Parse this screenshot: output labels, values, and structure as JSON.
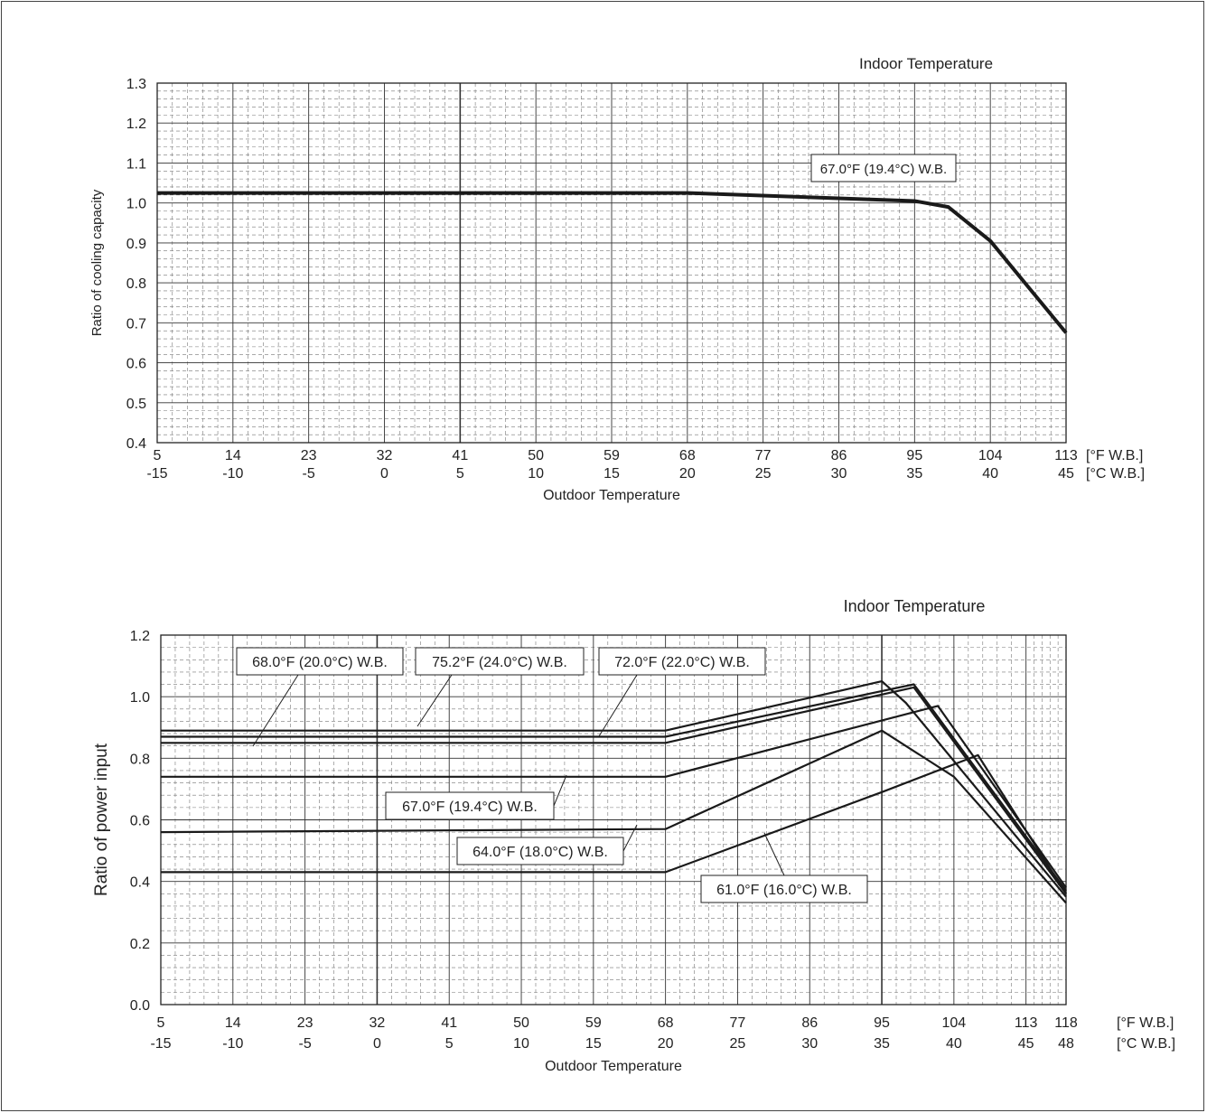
{
  "chart_data": [
    {
      "type": "line",
      "title": "Indoor Temperature",
      "ylabel": "Ratio of cooling capacity",
      "xlabel": "Outdoor Temperature",
      "ylim": [
        0.4,
        1.3
      ],
      "yticks": [
        "0.4",
        "0.5",
        "0.6",
        "0.7",
        "0.8",
        "0.9",
        "1.0",
        "1.1",
        "1.2",
        "1.3"
      ],
      "xlim": [
        5,
        113
      ],
      "xticks_f": [
        "5",
        "14",
        "23",
        "32",
        "41",
        "50",
        "59",
        "68",
        "77",
        "86",
        "95",
        "104",
        "113"
      ],
      "xticks_c": [
        "-15",
        "-10",
        "-5",
        "0",
        "5",
        "10",
        "15",
        "20",
        "25",
        "30",
        "35",
        "40",
        "45"
      ],
      "unit_f": "[°F W.B.]",
      "unit_c": "[°C W.B.]",
      "grid": true,
      "series": [
        {
          "name": "67.0°F (19.4°C) W.B.",
          "x": [
            5,
            68,
            95,
            99,
            104,
            113
          ],
          "y": [
            1.025,
            1.025,
            1.005,
            0.99,
            0.905,
            0.675
          ]
        }
      ]
    },
    {
      "type": "line",
      "title": "Indoor Temperature",
      "ylabel": "Ratio of power input",
      "xlabel": "Outdoor Temperature",
      "ylim": [
        0.0,
        1.2
      ],
      "yticks": [
        "0.0",
        "0.2",
        "0.4",
        "0.6",
        "0.8",
        "1.0",
        "1.2"
      ],
      "xlim": [
        5,
        118
      ],
      "xticks_f": [
        "5",
        "14",
        "23",
        "32",
        "41",
        "50",
        "59",
        "68",
        "77",
        "86",
        "95",
        "104",
        "113",
        "118"
      ],
      "xticks_c": [
        "-15",
        "-10",
        "-5",
        "0",
        "5",
        "10",
        "15",
        "20",
        "25",
        "30",
        "35",
        "40",
        "45",
        "48"
      ],
      "unit_f": "[°F W.B.]",
      "unit_c": "[°C W.B.]",
      "grid": true,
      "series": [
        {
          "name": "75.2°F (24.0°C) W.B.",
          "x": [
            5,
            68,
            95,
            98,
            118
          ],
          "y": [
            0.89,
            0.89,
            1.05,
            0.98,
            0.35
          ]
        },
        {
          "name": "72.0°F (22.0°C) W.B.",
          "x": [
            5,
            68,
            99,
            118
          ],
          "y": [
            0.87,
            0.87,
            1.04,
            0.37
          ]
        },
        {
          "name": "68.0°F (20.0°C) W.B.",
          "x": [
            5,
            68,
            99,
            118
          ],
          "y": [
            0.85,
            0.85,
            1.03,
            0.36
          ]
        },
        {
          "name": "67.0°F (19.4°C) W.B.",
          "x": [
            5,
            68,
            102,
            118
          ],
          "y": [
            0.74,
            0.74,
            0.97,
            0.38
          ]
        },
        {
          "name": "64.0°F (18.0°C) W.B.",
          "x": [
            5,
            68,
            95,
            104,
            118
          ],
          "y": [
            0.56,
            0.57,
            0.89,
            0.74,
            0.33
          ]
        },
        {
          "name": "61.0°F (16.0°C) W.B.",
          "x": [
            5,
            68,
            95,
            107,
            118
          ],
          "y": [
            0.43,
            0.43,
            0.69,
            0.81,
            0.36
          ]
        }
      ]
    }
  ]
}
